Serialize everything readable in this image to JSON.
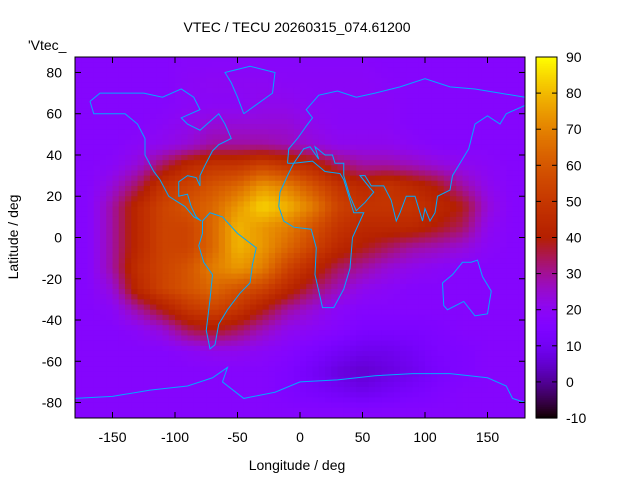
{
  "chart_data": {
    "type": "heatmap",
    "title": "VTEC / TECU 20260315_074.61200",
    "xlabel": "Longitude / deg",
    "ylabel": "Latitude / deg",
    "series_label": "'Vtec_",
    "xlim": [
      -180,
      180
    ],
    "ylim": [
      -87.5,
      87.5
    ],
    "xticks": [
      -150,
      -100,
      -50,
      0,
      50,
      100,
      150
    ],
    "yticks": [
      -80,
      -60,
      -40,
      -20,
      0,
      20,
      40,
      60,
      80
    ],
    "cbrange": [
      -10,
      90
    ],
    "cbticks": [
      -10,
      0,
      10,
      20,
      30,
      40,
      50,
      60,
      70,
      80,
      90
    ],
    "palette": "black-purple-red-orange-yellow",
    "grid_lons": [
      -170,
      -150,
      -130,
      -110,
      -90,
      -70,
      -50,
      -30,
      -10,
      10,
      30,
      50,
      70,
      90,
      110,
      130,
      150,
      170
    ],
    "grid_lats": [
      85,
      75,
      65,
      55,
      45,
      35,
      25,
      15,
      5,
      -5,
      -15,
      -25,
      -35,
      -45,
      -55,
      -65,
      -75,
      -85
    ],
    "values": [
      [
        17,
        17,
        17,
        17,
        18,
        18,
        18,
        18,
        18,
        18,
        18,
        18,
        17,
        17,
        17,
        17,
        17,
        17
      ],
      [
        17,
        17,
        17,
        17,
        19,
        20,
        20,
        20,
        19,
        19,
        19,
        19,
        18,
        17,
        17,
        17,
        17,
        17
      ],
      [
        17,
        17,
        17,
        17,
        19,
        19,
        19,
        21,
        21,
        19,
        19,
        19,
        19,
        17,
        17,
        17,
        17,
        17
      ],
      [
        17,
        17,
        17,
        19,
        21,
        24,
        24,
        24,
        24,
        21,
        19,
        19,
        19,
        17,
        17,
        17,
        17,
        17
      ],
      [
        17,
        17,
        19,
        21,
        24,
        29,
        29,
        29,
        27,
        24,
        21,
        21,
        21,
        19,
        17,
        17,
        17,
        17
      ],
      [
        17,
        19,
        24,
        34,
        44,
        49,
        49,
        54,
        49,
        44,
        34,
        29,
        29,
        27,
        24,
        21,
        19,
        17
      ],
      [
        17,
        24,
        34,
        49,
        54,
        59,
        64,
        74,
        69,
        59,
        49,
        44,
        49,
        44,
        39,
        29,
        21,
        17
      ],
      [
        17,
        29,
        44,
        54,
        59,
        64,
        74,
        84,
        79,
        69,
        54,
        49,
        49,
        49,
        44,
        39,
        24,
        17
      ],
      [
        17,
        29,
        44,
        54,
        54,
        64,
        79,
        74,
        69,
        59,
        49,
        44,
        44,
        44,
        39,
        34,
        21,
        17
      ],
      [
        17,
        29,
        44,
        54,
        54,
        64,
        79,
        74,
        64,
        54,
        44,
        39,
        34,
        29,
        27,
        24,
        19,
        17
      ],
      [
        17,
        29,
        47,
        54,
        59,
        69,
        74,
        69,
        54,
        44,
        34,
        29,
        24,
        21,
        19,
        17,
        17,
        17
      ],
      [
        17,
        24,
        44,
        54,
        59,
        64,
        59,
        54,
        44,
        34,
        27,
        21,
        19,
        17,
        17,
        17,
        17,
        17
      ],
      [
        17,
        19,
        29,
        39,
        49,
        54,
        49,
        39,
        29,
        24,
        19,
        17,
        17,
        17,
        17,
        17,
        17,
        17
      ],
      [
        17,
        17,
        19,
        24,
        34,
        39,
        34,
        27,
        21,
        19,
        17,
        14,
        14,
        14,
        15,
        17,
        17,
        17
      ],
      [
        17,
        17,
        17,
        17,
        19,
        21,
        21,
        19,
        17,
        14,
        11,
        9,
        9,
        11,
        14,
        15,
        17,
        17
      ],
      [
        17,
        17,
        17,
        17,
        17,
        17,
        17,
        17,
        15,
        11,
        7,
        5,
        7,
        9,
        13,
        15,
        17,
        17
      ],
      [
        17,
        17,
        17,
        17,
        17,
        17,
        17,
        17,
        15,
        13,
        11,
        9,
        11,
        13,
        15,
        17,
        17,
        17
      ],
      [
        17,
        17,
        17,
        17,
        17,
        17,
        17,
        17,
        17,
        17,
        17,
        17,
        17,
        17,
        17,
        17,
        17,
        17
      ]
    ],
    "coastline_color": "#00aaff",
    "coastlines": [
      [
        [
          -168,
          66
        ],
        [
          -160,
          70
        ],
        [
          -140,
          70
        ],
        [
          -125,
          70
        ],
        [
          -110,
          68
        ],
        [
          -95,
          72
        ],
        [
          -85,
          68
        ],
        [
          -80,
          62
        ],
        [
          -95,
          58
        ],
        [
          -90,
          55
        ],
        [
          -80,
          52
        ],
        [
          -65,
          60
        ],
        [
          -60,
          55
        ],
        [
          -55,
          48
        ],
        [
          -65,
          45
        ],
        [
          -70,
          42
        ],
        [
          -76,
          35
        ],
        [
          -80,
          30
        ],
        [
          -80,
          25
        ],
        [
          -83,
          29
        ],
        [
          -90,
          30
        ],
        [
          -97,
          27
        ],
        [
          -97,
          20
        ],
        [
          -90,
          21
        ],
        [
          -87,
          15
        ],
        [
          -83,
          10
        ],
        [
          -79,
          8
        ],
        [
          -85,
          10
        ],
        [
          -92,
          15
        ],
        [
          -105,
          20
        ],
        [
          -112,
          28
        ],
        [
          -117,
          32
        ],
        [
          -124,
          40
        ],
        [
          -124,
          48
        ],
        [
          -130,
          55
        ],
        [
          -140,
          60
        ],
        [
          -152,
          60
        ],
        [
          -165,
          60
        ],
        [
          -168,
          66
        ]
      ],
      [
        [
          -78,
          8
        ],
        [
          -72,
          12
        ],
        [
          -62,
          10
        ],
        [
          -50,
          2
        ],
        [
          -35,
          -5
        ],
        [
          -38,
          -13
        ],
        [
          -40,
          -22
        ],
        [
          -48,
          -27
        ],
        [
          -58,
          -35
        ],
        [
          -65,
          -42
        ],
        [
          -68,
          -52
        ],
        [
          -72,
          -54
        ],
        [
          -75,
          -45
        ],
        [
          -72,
          -30
        ],
        [
          -70,
          -18
        ],
        [
          -77,
          -12
        ],
        [
          -81,
          -4
        ],
        [
          -78,
          2
        ],
        [
          -78,
          8
        ]
      ],
      [
        [
          -45,
          60
        ],
        [
          -22,
          70
        ],
        [
          -20,
          80
        ],
        [
          -40,
          83
        ],
        [
          -60,
          80
        ],
        [
          -55,
          75
        ],
        [
          -50,
          68
        ],
        [
          -45,
          60
        ]
      ],
      [
        [
          -17,
          15
        ],
        [
          -16,
          22
        ],
        [
          -10,
          30
        ],
        [
          -5,
          36
        ],
        [
          10,
          37
        ],
        [
          20,
          32
        ],
        [
          32,
          31
        ],
        [
          35,
          28
        ],
        [
          43,
          12
        ],
        [
          51,
          12
        ],
        [
          42,
          0
        ],
        [
          40,
          -15
        ],
        [
          35,
          -25
        ],
        [
          27,
          -34
        ],
        [
          18,
          -34
        ],
        [
          12,
          -18
        ],
        [
          13,
          -5
        ],
        [
          9,
          4
        ],
        [
          -5,
          5
        ],
        [
          -13,
          8
        ],
        [
          -17,
          15
        ]
      ],
      [
        [
          -10,
          36
        ],
        [
          -9,
          43
        ],
        [
          -2,
          48
        ],
        [
          5,
          54
        ],
        [
          10,
          58
        ],
        [
          5,
          62
        ],
        [
          15,
          69
        ],
        [
          30,
          71
        ],
        [
          45,
          68
        ],
        [
          60,
          70
        ],
        [
          80,
          73
        ],
        [
          100,
          77
        ],
        [
          120,
          73
        ],
        [
          140,
          72
        ],
        [
          160,
          70
        ],
        [
          180,
          68
        ]
      ],
      [
        [
          180,
          64
        ],
        [
          165,
          60
        ],
        [
          160,
          55
        ],
        [
          150,
          59
        ],
        [
          140,
          55
        ],
        [
          135,
          43
        ],
        [
          128,
          36
        ],
        [
          122,
          30
        ],
        [
          120,
          23
        ],
        [
          110,
          20
        ],
        [
          108,
          12
        ],
        [
          104,
          8
        ],
        [
          100,
          14
        ],
        [
          98,
          8
        ],
        [
          92,
          20
        ],
        [
          85,
          20
        ],
        [
          80,
          12
        ],
        [
          77,
          8
        ],
        [
          73,
          18
        ],
        [
          67,
          25
        ],
        [
          57,
          25
        ],
        [
          52,
          30
        ],
        [
          48,
          30
        ],
        [
          56,
          24
        ],
        [
          59,
          22
        ],
        [
          52,
          17
        ],
        [
          45,
          13
        ],
        [
          40,
          20
        ],
        [
          35,
          30
        ],
        [
          35,
          36
        ],
        [
          28,
          36
        ],
        [
          26,
          40
        ],
        [
          20,
          40
        ],
        [
          12,
          44
        ],
        [
          15,
          38
        ],
        [
          8,
          44
        ],
        [
          3,
          43
        ],
        [
          -5,
          36
        ],
        [
          -10,
          36
        ]
      ],
      [
        [
          114,
          -22
        ],
        [
          122,
          -18
        ],
        [
          130,
          -12
        ],
        [
          137,
          -12
        ],
        [
          142,
          -11
        ],
        [
          146,
          -19
        ],
        [
          153,
          -26
        ],
        [
          150,
          -37
        ],
        [
          140,
          -38
        ],
        [
          131,
          -31
        ],
        [
          118,
          -35
        ],
        [
          115,
          -33
        ],
        [
          114,
          -22
        ]
      ],
      [
        [
          -180,
          -78
        ],
        [
          -150,
          -77
        ],
        [
          -120,
          -74
        ],
        [
          -90,
          -72
        ],
        [
          -70,
          -68
        ],
        [
          -58,
          -63
        ],
        [
          -62,
          -70
        ],
        [
          -45,
          -78
        ],
        [
          -20,
          -75
        ],
        [
          0,
          -70
        ],
        [
          30,
          -69
        ],
        [
          60,
          -67
        ],
        [
          90,
          -66
        ],
        [
          120,
          -66
        ],
        [
          150,
          -68
        ],
        [
          165,
          -72
        ],
        [
          170,
          -78
        ],
        [
          180,
          -80
        ]
      ]
    ]
  }
}
